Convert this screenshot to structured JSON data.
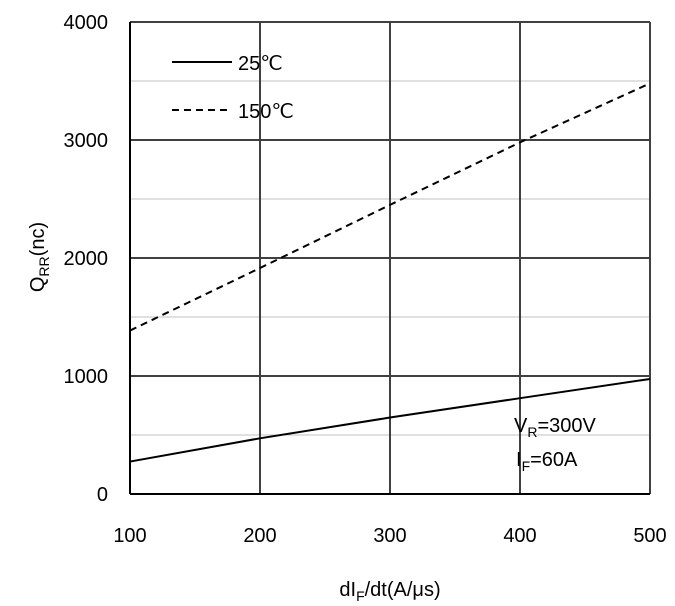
{
  "chart_data": {
    "type": "line",
    "x": [
      100,
      200,
      300,
      400,
      500
    ],
    "series": [
      {
        "name": "25℃",
        "style": "solid",
        "values": [
          275,
          472,
          648,
          812,
          975
        ]
      },
      {
        "name": "150℃",
        "style": "dashed",
        "values": [
          1385,
          1915,
          2450,
          2980,
          3480
        ]
      }
    ],
    "xlim": [
      100,
      500
    ],
    "ylim": [
      0,
      4000
    ],
    "x_ticks": [
      "100",
      "200",
      "300",
      "400",
      "500"
    ],
    "y_ticks": [
      "0",
      "1000",
      "2000",
      "3000",
      "4000"
    ],
    "xlabel": {
      "main": "dI",
      "sub": "F",
      "rest": "/dt(A/μs)"
    },
    "ylabel": {
      "main": "Q",
      "sub": "RR",
      "rest": "(nc)"
    },
    "legend_position": "top-left",
    "grid": true,
    "annotation": {
      "line1": {
        "main": "V",
        "sub": "R",
        "rest": "=300V"
      },
      "line2": {
        "main": "I",
        "sub": "F",
        "rest": "=60A"
      }
    },
    "colors": {
      "lines": "#000000",
      "grid": "#404040",
      "minor_grid": "#c0c0c0"
    }
  }
}
